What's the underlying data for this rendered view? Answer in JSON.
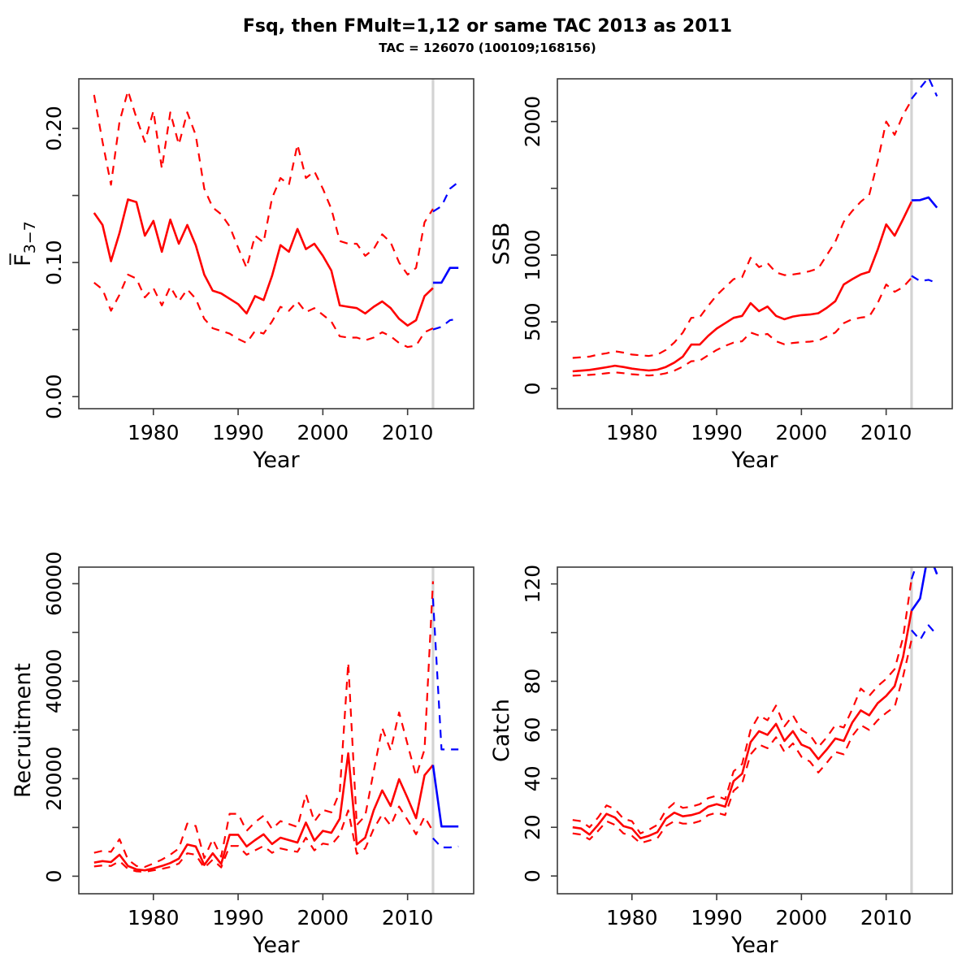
{
  "title": "Fsq, then FMult=1,12 or same TAC 2013 as 2011",
  "subtitle": "TAC = 126070 (100109;168156)",
  "colors": {
    "historic": "#FF0000",
    "projection": "#0000FF",
    "forecast_divider": "#D3D3D3",
    "axis": "#3a3a3a",
    "text": "#000000"
  },
  "chart_data": {
    "type": "line",
    "x_label": "Year",
    "legend": "none",
    "grid": false,
    "forecast_year": 2013,
    "years_hist": [
      1973,
      1974,
      1975,
      1976,
      1977,
      1978,
      1979,
      1980,
      1981,
      1982,
      1983,
      1984,
      1985,
      1986,
      1987,
      1988,
      1989,
      1990,
      1991,
      1992,
      1993,
      1994,
      1995,
      1996,
      1997,
      1998,
      1999,
      2000,
      2001,
      2002,
      2003,
      2004,
      2005,
      2006,
      2007,
      2008,
      2009,
      2010,
      2011,
      2012,
      2013
    ],
    "years_proj": [
      2013,
      2014,
      2015,
      2016
    ],
    "x_ticks": [
      {
        "v": 1980,
        "l": "1980"
      },
      {
        "v": 1990,
        "l": "1990"
      },
      {
        "v": 2000,
        "l": "2000"
      },
      {
        "v": 2010,
        "l": "2010"
      }
    ],
    "panels": [
      {
        "id": "fbar",
        "ylab_main": "F̅",
        "ylab_sub": "3−7",
        "xlab": "Year",
        "xlim": [
          1971.2,
          2017.8
        ],
        "ylim": [
          -0.009,
          0.237
        ],
        "y_ticks": [
          {
            "v": 0.0,
            "l": "0.00"
          },
          {
            "v": 0.05,
            "l": ""
          },
          {
            "v": 0.1,
            "l": "0.10"
          },
          {
            "v": 0.15,
            "l": ""
          },
          {
            "v": 0.2,
            "l": "0.20"
          }
        ],
        "hist": {
          "median": [
            0.137,
            0.128,
            0.101,
            0.122,
            0.147,
            0.145,
            0.12,
            0.131,
            0.108,
            0.132,
            0.114,
            0.128,
            0.113,
            0.091,
            0.079,
            0.077,
            0.073,
            0.069,
            0.062,
            0.075,
            0.072,
            0.09,
            0.113,
            0.108,
            0.125,
            0.11,
            0.114,
            0.105,
            0.094,
            0.068,
            0.067,
            0.066,
            0.062,
            0.067,
            0.071,
            0.066,
            0.058,
            0.053,
            0.057,
            0.075,
            0.081
          ],
          "upper": [
            0.225,
            0.19,
            0.158,
            0.205,
            0.228,
            0.208,
            0.19,
            0.213,
            0.17,
            0.212,
            0.188,
            0.212,
            0.195,
            0.155,
            0.141,
            0.136,
            0.127,
            0.111,
            0.096,
            0.12,
            0.115,
            0.148,
            0.163,
            0.158,
            0.188,
            0.163,
            0.168,
            0.155,
            0.14,
            0.116,
            0.114,
            0.114,
            0.105,
            0.11,
            0.121,
            0.115,
            0.1,
            0.091,
            0.096,
            0.13,
            0.14
          ],
          "lower": [
            0.085,
            0.08,
            0.064,
            0.076,
            0.091,
            0.088,
            0.074,
            0.081,
            0.068,
            0.082,
            0.071,
            0.08,
            0.073,
            0.058,
            0.051,
            0.049,
            0.047,
            0.043,
            0.04,
            0.049,
            0.047,
            0.056,
            0.067,
            0.064,
            0.071,
            0.063,
            0.066,
            0.061,
            0.056,
            0.045,
            0.044,
            0.044,
            0.042,
            0.044,
            0.048,
            0.045,
            0.04,
            0.037,
            0.038,
            0.048,
            0.051
          ]
        },
        "proj": {
          "median": [
            0.085,
            0.085,
            0.096,
            0.096
          ],
          "upper": [
            0.138,
            0.142,
            0.155,
            0.16
          ],
          "lower": [
            0.05,
            0.052,
            0.057,
            0.058
          ]
        }
      },
      {
        "id": "ssb",
        "ylab_main": "SSB",
        "ylab_sub": "",
        "xlab": "Year",
        "xlim": [
          1971.2,
          2017.8
        ],
        "ylim": [
          -150,
          2320
        ],
        "y_ticks": [
          {
            "v": 0,
            "l": "0"
          },
          {
            "v": 500,
            "l": "500"
          },
          {
            "v": 1000,
            "l": "1000"
          },
          {
            "v": 1500,
            "l": ""
          },
          {
            "v": 2000,
            "l": "2000"
          }
        ],
        "hist": {
          "median": [
            130,
            135,
            140,
            150,
            160,
            172,
            162,
            150,
            142,
            136,
            142,
            162,
            195,
            240,
            330,
            330,
            395,
            450,
            490,
            530,
            545,
            640,
            580,
            615,
            545,
            520,
            540,
            550,
            555,
            565,
            605,
            655,
            780,
            820,
            855,
            875,
            1040,
            1230,
            1145,
            1270,
            1400
          ],
          "upper": [
            230,
            235,
            240,
            255,
            265,
            280,
            270,
            255,
            250,
            245,
            255,
            290,
            345,
            420,
            530,
            535,
            620,
            700,
            760,
            820,
            835,
            980,
            910,
            940,
            870,
            850,
            855,
            865,
            880,
            900,
            1000,
            1100,
            1250,
            1330,
            1400,
            1450,
            1700,
            2000,
            1900,
            2050,
            2160
          ],
          "lower": [
            97,
            100,
            103,
            108,
            115,
            122,
            116,
            108,
            103,
            98,
            103,
            115,
            135,
            165,
            205,
            210,
            250,
            290,
            320,
            345,
            355,
            420,
            398,
            410,
            355,
            332,
            342,
            348,
            352,
            360,
            390,
            420,
            490,
            520,
            532,
            540,
            640,
            780,
            725,
            760,
            830
          ]
        },
        "proj": {
          "median": [
            1410,
            1412,
            1432,
            1355
          ],
          "upper": [
            2170,
            2250,
            2330,
            2190
          ],
          "lower": [
            845,
            805,
            815,
            790
          ]
        }
      },
      {
        "id": "recruitment",
        "ylab_main": "Recruitment",
        "ylab_sub": "",
        "xlab": "Year",
        "xlim": [
          1971.2,
          2017.8
        ],
        "ylim": [
          -3600,
          63400
        ],
        "y_ticks": [
          {
            "v": 0,
            "l": "0"
          },
          {
            "v": 10000,
            "l": ""
          },
          {
            "v": 20000,
            "l": "20000"
          },
          {
            "v": 30000,
            "l": ""
          },
          {
            "v": 40000,
            "l": "40000"
          },
          {
            "v": 50000,
            "l": ""
          },
          {
            "v": 60000,
            "l": "60000"
          }
        ],
        "hist": {
          "median": [
            2800,
            3100,
            2900,
            4400,
            2100,
            1400,
            1200,
            1600,
            2100,
            2700,
            3600,
            6500,
            6100,
            2300,
            4700,
            2500,
            8500,
            8500,
            6100,
            7400,
            8600,
            6600,
            7900,
            7400,
            6900,
            11000,
            7300,
            9300,
            8900,
            11800,
            25200,
            6500,
            7900,
            13500,
            17600,
            14400,
            19900,
            16000,
            11900,
            20700,
            22800
          ],
          "upper": [
            4800,
            5200,
            5000,
            7600,
            3400,
            2100,
            1900,
            2600,
            3400,
            4400,
            5700,
            10800,
            10300,
            3700,
            7600,
            4000,
            12800,
            12800,
            9300,
            11100,
            12400,
            9700,
            11300,
            10700,
            10100,
            16800,
            11200,
            13600,
            13100,
            17300,
            43800,
            10500,
            12400,
            21500,
            30400,
            25800,
            33600,
            27000,
            20500,
            26000,
            60500
          ],
          "lower": [
            2000,
            2200,
            2100,
            3100,
            1500,
            1000,
            900,
            1200,
            1500,
            1900,
            2600,
            4700,
            4400,
            1700,
            3400,
            1800,
            6200,
            6200,
            4400,
            5300,
            6200,
            4800,
            5700,
            5300,
            5000,
            7900,
            5300,
            6700,
            6400,
            8500,
            13500,
            4600,
            5700,
            9700,
            12700,
            10400,
            14300,
            11500,
            8600,
            12200,
            9200
          ]
        },
        "proj": {
          "median": [
            22800,
            10200,
            10200,
            10200
          ],
          "upper": [
            57000,
            26000,
            26000,
            26000
          ],
          "lower": [
            7800,
            5900,
            5900,
            6100
          ]
        }
      },
      {
        "id": "catch",
        "ylab_main": "Catch",
        "ylab_sub": "",
        "xlab": "Year",
        "xlim": [
          1971.2,
          2017.8
        ],
        "ylim": [
          -7.3,
          126.9
        ],
        "y_ticks": [
          {
            "v": 0,
            "l": "0"
          },
          {
            "v": 20,
            "l": "20"
          },
          {
            "v": 40,
            "l": "40"
          },
          {
            "v": 60,
            "l": "60"
          },
          {
            "v": 80,
            "l": "80"
          },
          {
            "v": 100,
            "l": ""
          },
          {
            "v": 120,
            "l": "120"
          }
        ],
        "hist": {
          "median": [
            20,
            19.5,
            17,
            21,
            25.5,
            24,
            20.5,
            19.5,
            15.5,
            16.5,
            18,
            23.5,
            26,
            24.5,
            25,
            26,
            28.5,
            29.5,
            28.5,
            39,
            42,
            55,
            59.5,
            58,
            62.5,
            55.5,
            59.5,
            54,
            52.5,
            48,
            52,
            56.5,
            55.5,
            63,
            68,
            66,
            71,
            74,
            78,
            90,
            109
          ],
          "upper": [
            23,
            22.5,
            20,
            24,
            29,
            27.5,
            23.5,
            22.5,
            17.5,
            19,
            21,
            27,
            30,
            28,
            28.5,
            29.5,
            32,
            33,
            31.5,
            43,
            46,
            60,
            66,
            64,
            70,
            61.5,
            66,
            60,
            58,
            53,
            57,
            62,
            61,
            68.5,
            77,
            74,
            78,
            81,
            85,
            98,
            122
          ],
          "lower": [
            17.5,
            17,
            15,
            18.5,
            22.5,
            21,
            17.5,
            16.5,
            13.5,
            14.5,
            15.5,
            20.5,
            22.5,
            21.5,
            21.5,
            22.5,
            25,
            26,
            25,
            35,
            38,
            50,
            54,
            52.5,
            57,
            51,
            54.5,
            49,
            47,
            42.5,
            46.5,
            51,
            50,
            57.5,
            62,
            60,
            64,
            67,
            69.5,
            82,
            97
          ]
        },
        "proj": {
          "median": [
            109,
            114,
            133,
            124
          ],
          "upper": [
            122,
            132,
            141,
            136
          ],
          "lower": [
            101,
            97,
            103,
            99
          ]
        }
      }
    ]
  }
}
